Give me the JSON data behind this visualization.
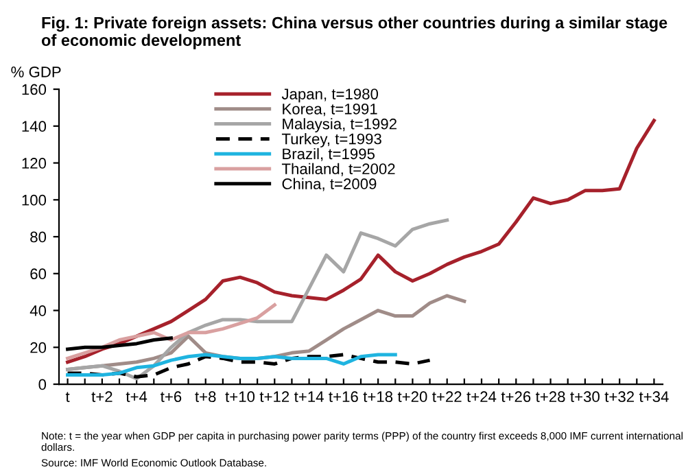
{
  "chart_data": {
    "type": "line",
    "title": "Fig. 1: Private foreign assets: China versus other countries during a similar stage of economic development",
    "ylabel": "% GDP",
    "categories": [
      "t",
      null,
      "t+2",
      null,
      "t+4",
      null,
      "t+6",
      null,
      "t+8",
      null,
      "t+10",
      null,
      "t+12",
      null,
      "t+14",
      null,
      "t+16",
      null,
      "t+18",
      null,
      "t+20",
      null,
      "t+22",
      null,
      "t+24",
      null,
      "t+26",
      null,
      "t+28",
      null,
      "t+30",
      null,
      "t+32",
      null,
      "t+34"
    ],
    "series": [
      {
        "name": "Japan, t=1980",
        "color": "#a6212b",
        "line_style": "solid",
        "values": [
          12,
          15,
          19,
          22,
          26,
          30,
          34,
          40,
          46,
          56,
          58,
          55,
          50,
          48,
          47,
          46,
          51,
          57,
          70,
          61,
          56,
          60,
          65,
          69,
          72,
          76,
          88,
          101,
          98,
          100,
          105,
          105,
          106,
          128,
          143
        ]
      },
      {
        "name": "Korea, t=1991",
        "color": "#a08c88",
        "line_style": "solid",
        "values": [
          8,
          9,
          10,
          11,
          12,
          14,
          17,
          26,
          17,
          15,
          14,
          14,
          15,
          17,
          18,
          24,
          30,
          35,
          40,
          37,
          37,
          44,
          48,
          45,
          null,
          null,
          null,
          null,
          null,
          null,
          null,
          null,
          null,
          null,
          null
        ]
      },
      {
        "name": "Malaysia, t=1992",
        "color": "#a6a6a6",
        "line_style": "solid",
        "values": [
          8,
          9,
          10,
          7,
          3,
          10,
          20,
          28,
          32,
          35,
          35,
          34,
          34,
          34,
          52,
          70,
          61,
          82,
          79,
          75,
          84,
          87,
          89,
          null,
          null,
          null,
          null,
          null,
          null,
          null,
          null,
          null,
          null,
          null,
          null
        ]
      },
      {
        "name": "Turkey, t=1993",
        "color": "#000000",
        "line_style": "dashed",
        "values": [
          6,
          6,
          5,
          6,
          4,
          5,
          9,
          11,
          15,
          14,
          12,
          12,
          11,
          14,
          15,
          15,
          16,
          14,
          12,
          12,
          11,
          13,
          null,
          null,
          null,
          null,
          null,
          null,
          null,
          null,
          null,
          null,
          null,
          null,
          null
        ]
      },
      {
        "name": "Brazil, t=1995",
        "color": "#1fb4e0",
        "line_style": "solid",
        "values": [
          5,
          5,
          5,
          6,
          9,
          10,
          13,
          15,
          16,
          15,
          14,
          14,
          15,
          14,
          14,
          14,
          11,
          15,
          16,
          16,
          null,
          null,
          null,
          null,
          null,
          null,
          null,
          null,
          null,
          null,
          null,
          null,
          null,
          null,
          null
        ]
      },
      {
        "name": "Thailand, t=2002",
        "color": "#d9a0a0",
        "line_style": "solid",
        "values": [
          14,
          17,
          20,
          24,
          26,
          28,
          24,
          28,
          28,
          30,
          33,
          36,
          43,
          null,
          null,
          null,
          null,
          null,
          null,
          null,
          null,
          null,
          null,
          null,
          null,
          null,
          null,
          null,
          null,
          null,
          null,
          null,
          null,
          null,
          null
        ]
      },
      {
        "name": "China, t=2009",
        "color": "#000000",
        "line_style": "solid",
        "values": [
          19,
          20,
          20,
          21,
          22,
          24,
          25,
          null,
          null,
          null,
          null,
          null,
          null,
          null,
          null,
          null,
          null,
          null,
          null,
          null,
          null,
          null,
          null,
          null,
          null,
          null,
          null,
          null,
          null,
          null,
          null,
          null,
          null,
          null,
          null
        ]
      }
    ],
    "ylim": [
      0,
      160
    ],
    "yticks": [
      0,
      20,
      40,
      60,
      80,
      100,
      120,
      140,
      160
    ],
    "grid": false,
    "legend": "top left",
    "marker": "none",
    "annotations": [
      "Note: t = the year when GDP per capita in purchasing power parity terms (PPP) of the country first exceeds 8,000 IMF current international dollars.",
      "Source: IMF World Economic Outlook Database."
    ]
  }
}
